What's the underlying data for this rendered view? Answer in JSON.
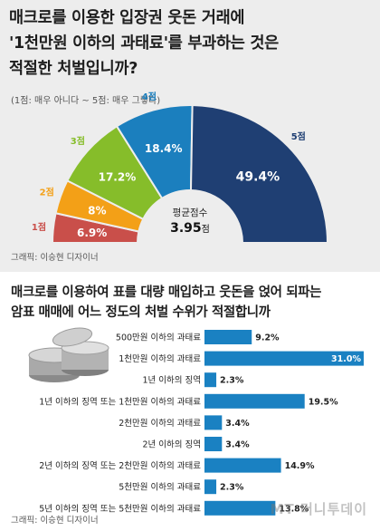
{
  "top": {
    "title_lines": [
      "매크로를 이용한 입장권 웃돈 거래에",
      "'1천만원 이하의 과태료'를 부과하는 것은",
      "적절한 처벌입니까?"
    ],
    "scale_note": "(1점: 매우 아니다 ~ 5점: 매우 그렇다)",
    "credit": "그래픽: 이승현 디자이너",
    "average_label": "평균점수",
    "average_value": "3.95",
    "average_unit": "점"
  },
  "bottom": {
    "title_lines": [
      "매크로를 이용하여 표를 대량 매입하고 웃돈을 얹어 되파는",
      "암표 매매에 어느 정도의 처벌 수위가 적절합니까"
    ],
    "credit": "그래픽: 이승현 디자이너"
  },
  "watermark": "MT 머니투데이",
  "colors": {
    "s1": "#c94f4a",
    "s2": "#f3a017",
    "s3": "#86bd2a",
    "s4": "#1b7fbe",
    "s5": "#1f3f73",
    "bar": "#1a81c2"
  },
  "chart_data": [
    {
      "type": "pie",
      "variant": "semicircle-donut",
      "categories": [
        "1점",
        "2점",
        "3점",
        "4점",
        "5점"
      ],
      "values": [
        6.9,
        8,
        17.2,
        18.4,
        49.4
      ],
      "value_labels": [
        "6.9%",
        "8%",
        "17.2%",
        "18.4%",
        "49.4%"
      ],
      "title": "매크로를 이용한 입장권 웃돈 거래에 '1천만원 이하의 과태료'를 부과하는 것은 적절한 처벌입니까?"
    },
    {
      "type": "bar",
      "orientation": "horizontal",
      "categories": [
        "500만원 이하의 과태료",
        "1천만원 이하의 과태료",
        "1년 이하의 징역",
        "1년 이하의 징역 또는 1천만원 이하의 과태료",
        "2천만원 이하의 과태료",
        "2년 이하의 징역",
        "2년 이하의 징역 또는 2천만원 이하의 과태료",
        "5천만원 이하의 과태료",
        "5년 이하의 징역 또는 5천만원 이하의 과태료"
      ],
      "values": [
        9.2,
        31.0,
        2.3,
        19.5,
        3.4,
        3.4,
        14.9,
        2.3,
        13.8
      ],
      "value_labels": [
        "9.2%",
        "31.0%",
        "2.3%",
        "19.5%",
        "3.4%",
        "3.4%",
        "14.9%",
        "2.3%",
        "13.8%"
      ],
      "title": "매크로를 이용하여 표를 대량 매입하고 웃돈을 얹어 되파는 암표 매매에 어느 정도의 처벌 수위가 적절합니까",
      "xlim": [
        0,
        31
      ]
    }
  ]
}
